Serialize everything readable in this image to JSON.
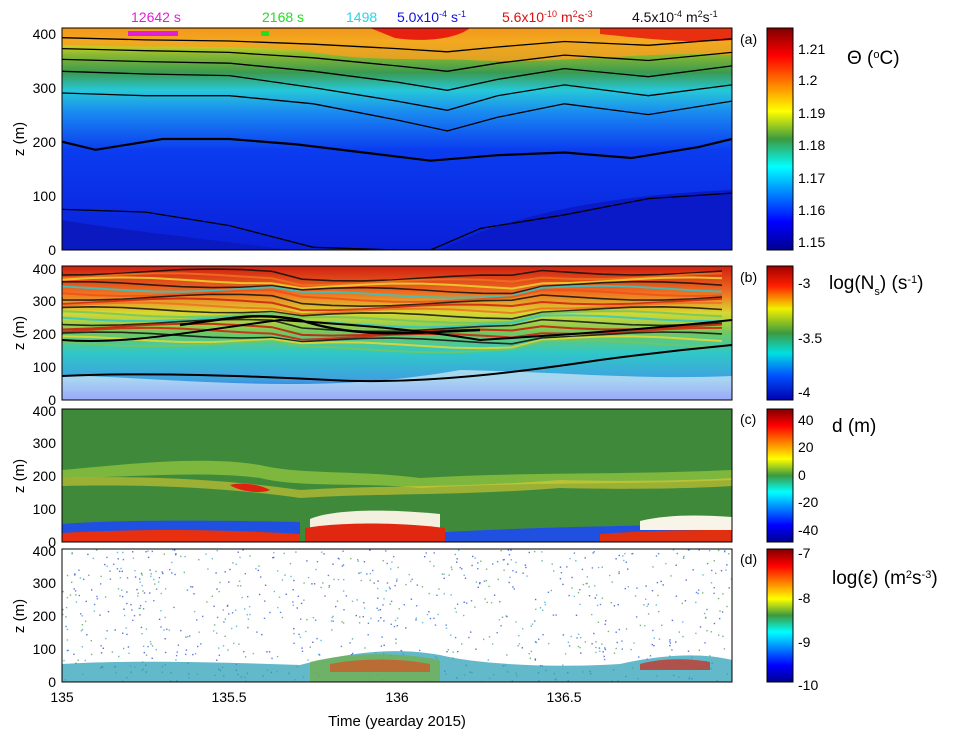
{
  "figure": {
    "xlabel": "Time (yearday 2015)",
    "x_ticks": [
      "135",
      "135.5",
      "136",
      "136.5"
    ],
    "annotations": [
      {
        "text": "12642 s",
        "color": "#e020d8"
      },
      {
        "text": "2168 s",
        "color": "#22dd22"
      },
      {
        "text": "1498",
        "color": "#22d8e8"
      },
      {
        "text": "5.0x10",
        "sup": "-4",
        "suffix": " s",
        "sup2": "-1",
        "color": "#1010dd"
      },
      {
        "text": "5.6x10",
        "sup": "-10",
        "suffix": " m",
        "sup2": "2",
        "suffix2": "s",
        "sup3": "-3",
        "color": "#dd1010"
      },
      {
        "text": "4.5x10",
        "sup": "-4",
        "suffix": " m",
        "sup2": "2",
        "suffix2": "s",
        "sup3": "-1",
        "color": "#111111"
      }
    ]
  },
  "chart_data": [
    {
      "type": "heatmap",
      "panel": "(a)",
      "ylabel": "z (m)",
      "y_ticks": [
        "0",
        "100",
        "200",
        "300",
        "400"
      ],
      "colorbar_label": {
        "main": "Θ (",
        "sup": "o",
        "tail": "C)"
      },
      "colorbar_ticks": [
        "1.21",
        "1.2",
        "1.19",
        "1.18",
        "1.17",
        "1.16",
        "1.15"
      ],
      "clim": [
        1.147,
        1.215
      ],
      "x_range": [
        135,
        137
      ],
      "y_range": [
        0,
        410
      ],
      "contours": [
        {
          "x": [
            135,
            135.25,
            135.5,
            135.75,
            136,
            136.1,
            136.25,
            136.5,
            136.75,
            137
          ],
          "z": [
            75,
            70,
            45,
            5,
            0,
            0,
            40,
            65,
            95,
            105
          ]
        },
        {
          "x": [
            135,
            135.1,
            135.3,
            135.5,
            135.7,
            135.9,
            136.1,
            136.3,
            136.5,
            136.7,
            136.9,
            137
          ],
          "z": [
            200,
            185,
            205,
            205,
            195,
            180,
            165,
            175,
            180,
            170,
            190,
            205
          ]
        },
        {
          "x": [
            135,
            135.25,
            135.5,
            135.75,
            136,
            136.15,
            136.3,
            136.5,
            136.75,
            137
          ],
          "z": [
            290,
            285,
            285,
            270,
            240,
            220,
            245,
            270,
            250,
            275
          ]
        },
        {
          "x": [
            135,
            135.25,
            135.5,
            135.75,
            136,
            136.15,
            136.3,
            136.5,
            136.75,
            137
          ],
          "z": [
            330,
            325,
            322,
            300,
            275,
            258,
            285,
            305,
            285,
            305
          ]
        },
        {
          "x": [
            135,
            135.25,
            135.5,
            135.75,
            136,
            136.15,
            136.3,
            136.5,
            136.75,
            137
          ],
          "z": [
            352,
            348,
            345,
            330,
            310,
            295,
            315,
            335,
            320,
            340
          ]
        },
        {
          "x": [
            135,
            135.25,
            135.5,
            135.75,
            136,
            136.15,
            136.3,
            136.5,
            136.75,
            137
          ],
          "z": [
            372,
            368,
            365,
            355,
            340,
            330,
            345,
            360,
            350,
            365
          ]
        },
        {
          "x": [
            135,
            135.25,
            135.5,
            135.75,
            136,
            136.15,
            136.3,
            136.5,
            136.75,
            137
          ],
          "z": [
            392,
            388,
            386,
            380,
            372,
            366,
            375,
            385,
            378,
            390
          ]
        }
      ]
    },
    {
      "type": "heatmap",
      "panel": "(b)",
      "ylabel": "z (m)",
      "y_ticks": [
        "0",
        "100",
        "200",
        "300",
        "400"
      ],
      "colorbar_label": {
        "main": "log(N",
        "sub": "s",
        "tail": ") (s",
        "sup": "-1",
        "end": ")"
      },
      "colorbar_ticks": [
        "-3",
        "-3.5",
        "-4"
      ],
      "clim": [
        -4,
        -2.8
      ]
    },
    {
      "type": "heatmap",
      "panel": "(c)",
      "ylabel": "z (m)",
      "y_ticks": [
        "0",
        "100",
        "200",
        "300",
        "400"
      ],
      "colorbar_label": {
        "main": "d (m)"
      },
      "colorbar_ticks": [
        "40",
        "20",
        "0",
        "-20",
        "-40"
      ],
      "clim": [
        -48,
        48
      ]
    },
    {
      "type": "heatmap",
      "panel": "(d)",
      "ylabel": "z (m)",
      "y_ticks": [
        "0",
        "100",
        "200",
        "300",
        "400"
      ],
      "colorbar_label": {
        "main": "log(ε) (m",
        "sup": "2",
        "tail": "s",
        "sup2": "-3",
        "end": ")"
      },
      "colorbar_ticks": [
        "-7",
        "-8",
        "-9",
        "-10"
      ],
      "clim": [
        -10,
        -7
      ]
    }
  ]
}
